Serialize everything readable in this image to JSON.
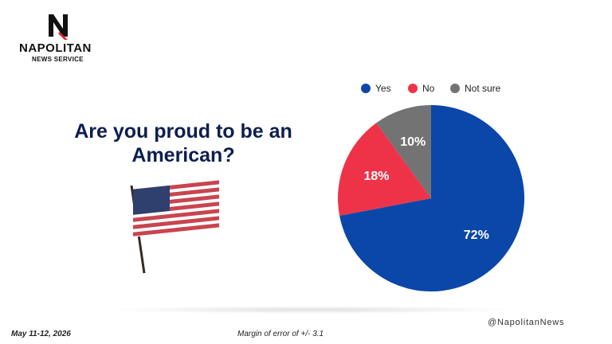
{
  "header": {
    "brand": "NAPOLITAN",
    "brand_sub": "NEWS SERVICE"
  },
  "chart_data": {
    "type": "pie",
    "title": "Are you proud to be an American?",
    "categories": [
      "Yes",
      "No",
      "Not sure"
    ],
    "values": [
      72,
      18,
      10
    ],
    "value_labels": [
      "72%",
      "18%",
      "10%"
    ],
    "colors": [
      "#0a47a9",
      "#ee3348",
      "#737373"
    ],
    "legend": "top"
  },
  "footer": {
    "date": "May 11-12, 2026",
    "note": "Margin of error of +/- 3.1",
    "handle": "@NapolitanNews"
  }
}
